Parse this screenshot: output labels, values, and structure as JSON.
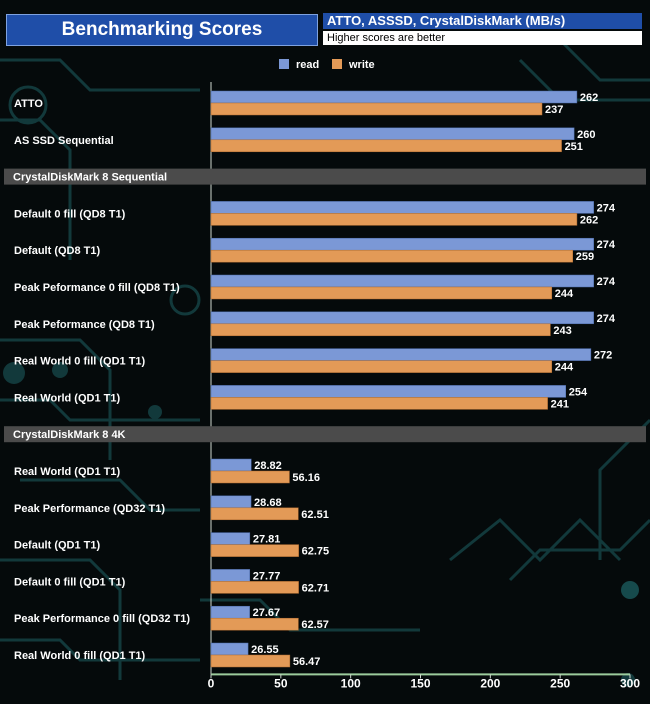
{
  "header": {
    "title": "Benchmarking Scores",
    "subtitle": "ATTO, ASSSD, CrystalDiskMark (MB/s)",
    "note": "Higher scores are better"
  },
  "colors": {
    "read": "#7b98d6",
    "write": "#e39a57"
  },
  "chart_data": {
    "type": "bar",
    "orientation": "horizontal",
    "title": "Benchmarking Scores",
    "subtitle": "ATTO, ASSSD, CrystalDiskMark (MB/s)",
    "xlim": [
      0,
      300
    ],
    "xticks": [
      0,
      50,
      100,
      150,
      200,
      250,
      300
    ],
    "legend": [
      "read",
      "write"
    ],
    "legend_position": "top",
    "rows": [
      {
        "kind": "data",
        "label": "ATTO",
        "read": 262,
        "write": 237,
        "read_label": "262",
        "write_label": "237"
      },
      {
        "kind": "data",
        "label": "AS SSD Sequential",
        "read": 260,
        "write": 251,
        "read_label": "260",
        "write_label": "251"
      },
      {
        "kind": "section",
        "label": "CrystalDiskMark 8 Sequential"
      },
      {
        "kind": "data",
        "label": "Default 0 fill (QD8 T1)",
        "read": 274,
        "write": 262,
        "read_label": "274",
        "write_label": "262"
      },
      {
        "kind": "data",
        "label": "Default (QD8 T1)",
        "read": 274,
        "write": 259,
        "read_label": "274",
        "write_label": "259"
      },
      {
        "kind": "data",
        "label": "Peak Peformance 0 fill (QD8 T1)",
        "read": 274,
        "write": 244,
        "read_label": "274",
        "write_label": "244"
      },
      {
        "kind": "data",
        "label": "Peak Peformance (QD8 T1)",
        "read": 274,
        "write": 243,
        "read_label": "274",
        "write_label": "243"
      },
      {
        "kind": "data",
        "label": "Real World 0 fill (QD1 T1)",
        "read": 272,
        "write": 244,
        "read_label": "272",
        "write_label": "244"
      },
      {
        "kind": "data",
        "label": "Real World (QD1 T1)",
        "read": 254,
        "write": 241,
        "read_label": "254",
        "write_label": "241"
      },
      {
        "kind": "section",
        "label": "CrystalDiskMark 8 4K"
      },
      {
        "kind": "data",
        "label": "Real World  (QD1 T1)",
        "read": 28.82,
        "write": 56.16,
        "read_label": "28.82",
        "write_label": "56.16"
      },
      {
        "kind": "data",
        "label": "Peak Performance (QD32 T1)",
        "read": 28.68,
        "write": 62.51,
        "read_label": "28.68",
        "write_label": "62.51"
      },
      {
        "kind": "data",
        "label": "Default (QD1 T1)",
        "read": 27.81,
        "write": 62.75,
        "read_label": "27.81",
        "write_label": "62.75"
      },
      {
        "kind": "data",
        "label": "Default 0 fill (QD1 T1)",
        "read": 27.77,
        "write": 62.71,
        "read_label": "27.77",
        "write_label": "62.71"
      },
      {
        "kind": "data",
        "label": "Peak Performance 0 fill (QD32 T1)",
        "read": 27.67,
        "write": 62.57,
        "read_label": "27.67",
        "write_label": "62.57"
      },
      {
        "kind": "data",
        "label": "Real World 0 fill  (QD1 T1)",
        "read": 26.55,
        "write": 56.47,
        "read_label": "26.55",
        "write_label": "56.47"
      }
    ]
  }
}
